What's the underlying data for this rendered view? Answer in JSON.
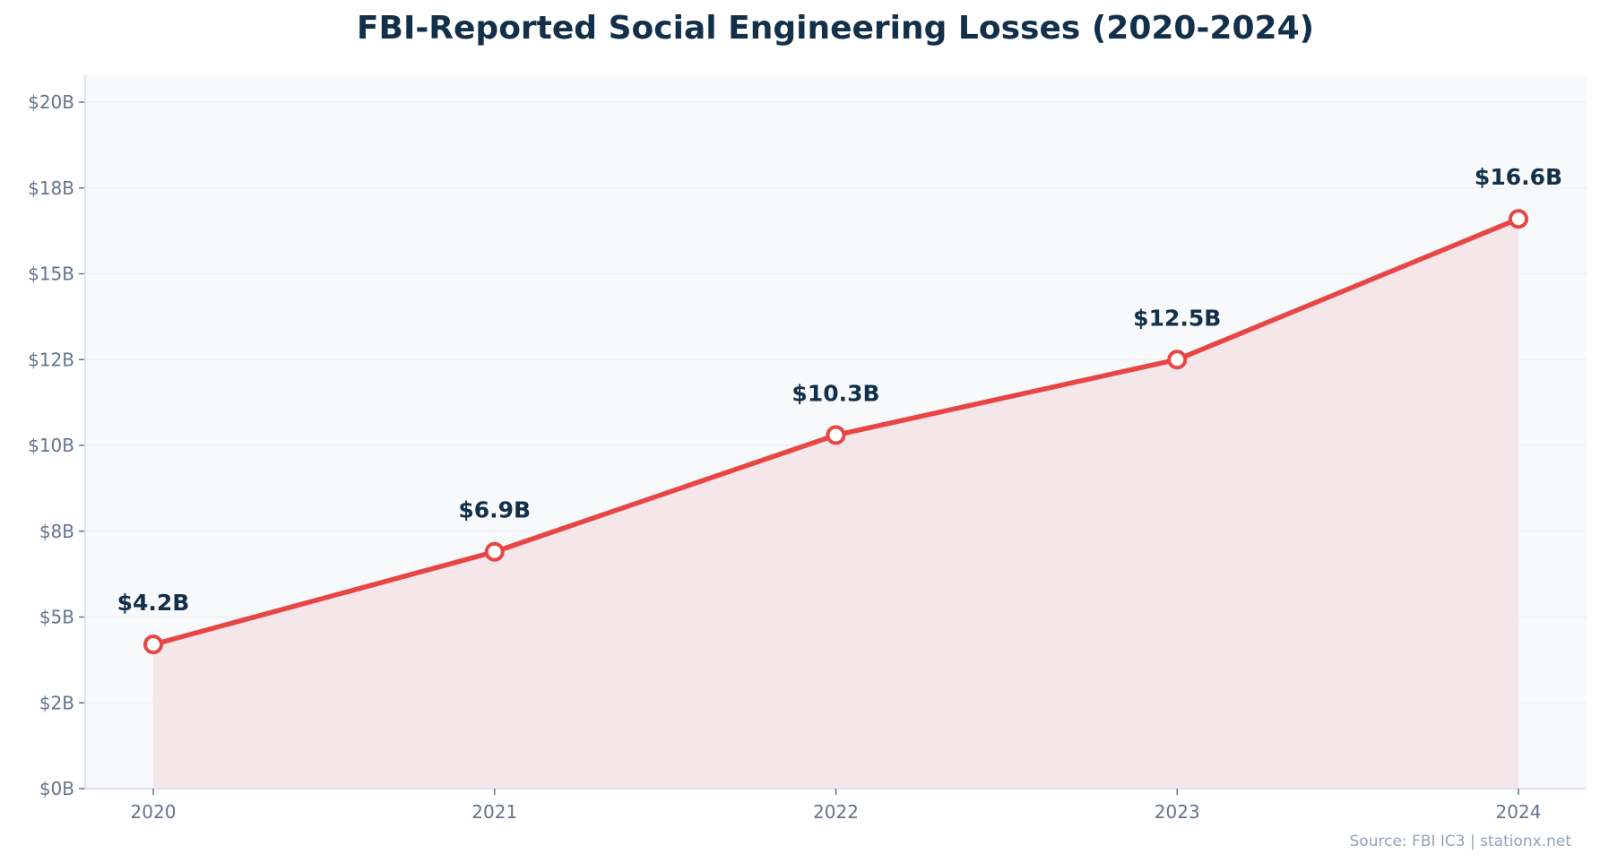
{
  "chart_data": {
    "type": "area",
    "title": "FBI-Reported Social Engineering Losses (2020-2024)",
    "xlabel": "",
    "ylabel": "",
    "categories": [
      "2020",
      "2021",
      "2022",
      "2023",
      "2024"
    ],
    "values": [
      4.2,
      6.9,
      10.3,
      12.5,
      16.6
    ],
    "data_labels": [
      "$4.2B",
      "$6.9B",
      "$10.3B",
      "$12.5B",
      "$16.6B"
    ],
    "ylim": [
      0,
      20
    ],
    "yticks": [
      0,
      2.5,
      5,
      7.5,
      10,
      12.5,
      15,
      17.5,
      20
    ],
    "ytick_labels": [
      "$0B",
      "$2B",
      "$5B",
      "$8B",
      "$10B",
      "$12B",
      "$15B",
      "$18B",
      "$20B"
    ],
    "grid": true,
    "source": "Source: FBI IC3 | stationx.net",
    "colors": {
      "line": "#e84545",
      "fill": "#f5e6ea",
      "plot_bg": "#f8f9fb",
      "title": "#12304a",
      "ticks": "#64748b",
      "source": "#94a3b8"
    }
  }
}
